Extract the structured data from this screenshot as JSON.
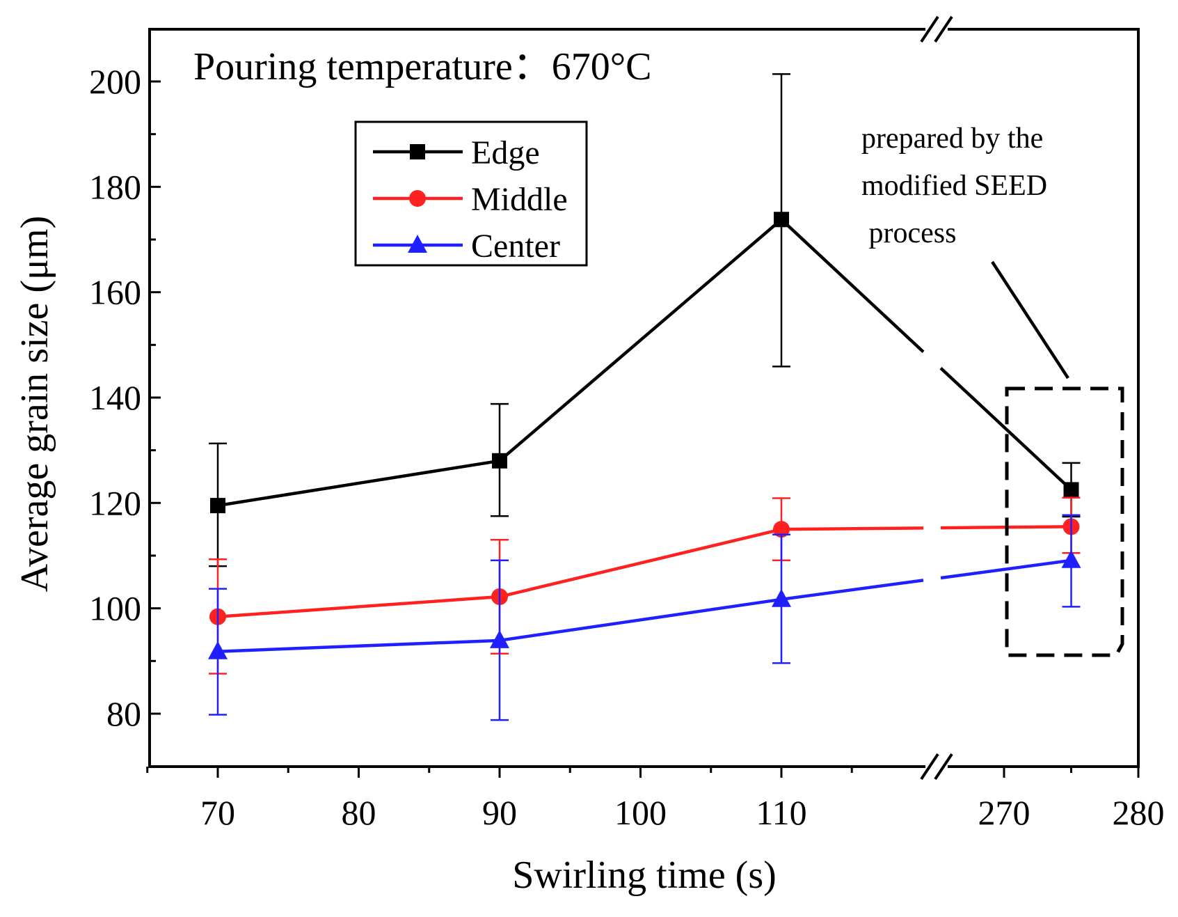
{
  "chart_data": {
    "type": "line",
    "title": "Pouring temperature：670°C",
    "xlabel": "Swirling time (s)",
    "ylabel": "Average grain size (μm)",
    "x": [
      70,
      90,
      110,
      275
    ],
    "x_tick_labels": [
      "70",
      "80",
      "90",
      "100",
      "110",
      "270",
      "280"
    ],
    "x_segments": [
      {
        "from": 65,
        "to": 120
      },
      {
        "from": 270,
        "to": 280
      }
    ],
    "ylim": [
      70,
      210
    ],
    "y_ticks": [
      80,
      100,
      120,
      140,
      160,
      180,
      200
    ],
    "y_tick_labels": [
      "80",
      "100",
      "120",
      "140",
      "160",
      "180",
      "200"
    ],
    "axis_break": "//",
    "series": [
      {
        "name": "Edge",
        "color": "#000000",
        "marker": "square",
        "values": [
          119.5,
          128,
          173.8,
          122.5
        ],
        "error": [
          [
            108,
            131.3
          ],
          [
            117.5,
            138.8
          ],
          [
            145.9,
            201.4
          ],
          [
            117.4,
            127.6
          ]
        ]
      },
      {
        "name": "Middle",
        "color": "#ff2020",
        "marker": "circle",
        "values": [
          98.4,
          102.2,
          115,
          115.5
        ],
        "error": [
          [
            87.6,
            109.3
          ],
          [
            91.4,
            113
          ],
          [
            109.1,
            120.9
          ],
          [
            110.5,
            121
          ]
        ]
      },
      {
        "name": "Center",
        "color": "#2020ff",
        "marker": "triangle",
        "values": [
          91.8,
          93.9,
          101.7,
          109.1
        ],
        "error": [
          [
            79.8,
            103.7
          ],
          [
            78.8,
            109.1
          ],
          [
            89.6,
            114
          ],
          [
            100.3,
            117.7
          ]
        ]
      }
    ],
    "annotation": {
      "lines": [
        "prepared by the",
        "modified SEED",
        " process"
      ]
    }
  }
}
